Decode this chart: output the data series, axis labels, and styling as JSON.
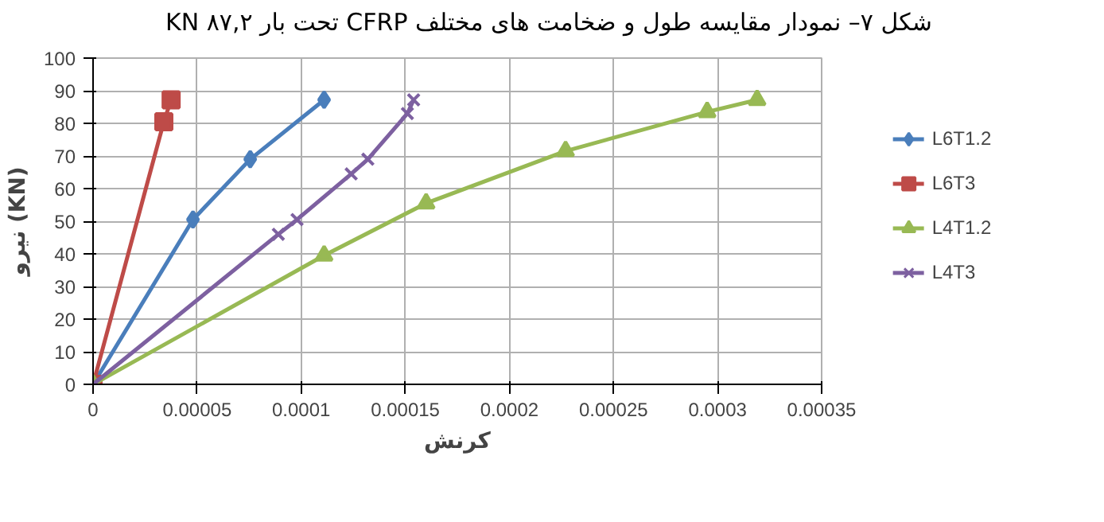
{
  "chart_data": {
    "type": "line",
    "title": "شکل ۷– نمودار مقایسه طول و ضخامت های مختلف CFRP تحت بار KN ۸۷,۲",
    "xlabel": "کرنش",
    "ylabel": "نیرو (KN)",
    "xlim": [
      0,
      0.00035
    ],
    "ylim": [
      0,
      100
    ],
    "xticks": [
      0,
      {
        "value": 5e-05,
        "label": "0.00005"
      },
      {
        "value": 0.0001,
        "label": "0.0001"
      },
      {
        "value": 0.00015,
        "label": "0.00015"
      },
      {
        "value": 0.0002,
        "label": "0.0002"
      },
      {
        "value": 0.00025,
        "label": "0.00025"
      },
      {
        "value": 0.0003,
        "label": "0.0003"
      },
      {
        "value": 0.00035,
        "label": "0.00035"
      }
    ],
    "yticks": [
      0,
      10,
      20,
      30,
      40,
      50,
      60,
      70,
      80,
      90,
      100
    ],
    "grid": true,
    "legend": "right",
    "series": [
      {
        "name": "L6T1.2",
        "color": "#4a7ebb",
        "marker": "diamond",
        "x": [
          0,
          4.8e-05,
          7.55e-05,
          0.000111
        ],
        "values": [
          0,
          50.5,
          69,
          87.2
        ]
      },
      {
        "name": "L6T3",
        "color": "#be4b48",
        "marker": "square",
        "x": [
          0,
          3.4e-05,
          3.75e-05
        ],
        "values": [
          0,
          80.5,
          87.2
        ]
      },
      {
        "name": "L4T1.2",
        "color": "#98b954",
        "marker": "triangle",
        "x": [
          0,
          0.000111,
          0.00016,
          0.000227,
          0.000295,
          0.000319
        ],
        "values": [
          0,
          39.5,
          55.5,
          71.5,
          83.5,
          87.2
        ]
      },
      {
        "name": "L4T3",
        "color": "#7d60a0",
        "marker": "cross",
        "x": [
          0,
          8.9e-05,
          9.8e-05,
          0.000124,
          0.000132,
          0.000151,
          0.000154
        ],
        "values": [
          0,
          46,
          50.5,
          64.5,
          69,
          83,
          87.2
        ]
      }
    ]
  }
}
